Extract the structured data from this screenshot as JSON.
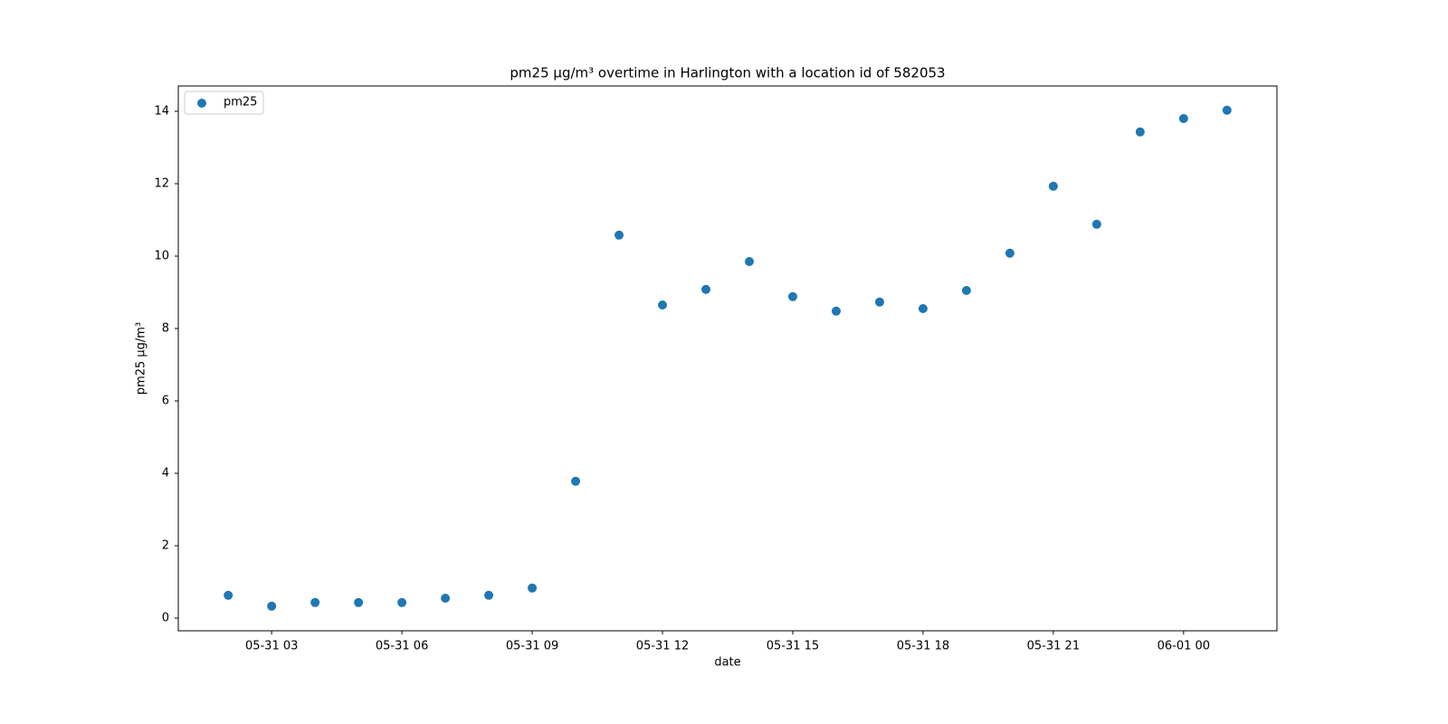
{
  "chart_data": {
    "type": "scatter",
    "title": "pm25 µg/m³ overtime in Harlington with a location id of 582053",
    "x_label": "date",
    "y_label": "pm25 µg/m³",
    "x": [
      "05-31 02",
      "05-31 03",
      "05-31 04",
      "05-31 05",
      "05-31 06",
      "05-31 07",
      "05-31 08",
      "05-31 09",
      "05-31 10",
      "05-31 11",
      "05-31 12",
      "05-31 13",
      "05-31 14",
      "05-31 15",
      "05-31 16",
      "05-31 17",
      "05-31 18",
      "05-31 19",
      "05-31 20",
      "05-31 21",
      "05-31 22",
      "05-31 23",
      "06-01 00",
      "06-01 01"
    ],
    "series": [
      {
        "name": "pm25",
        "color": "#1f77b4",
        "values": [
          0.63,
          0.33,
          0.43,
          0.43,
          0.43,
          0.55,
          0.63,
          0.83,
          3.78,
          10.58,
          8.65,
          9.08,
          9.85,
          8.88,
          8.48,
          8.73,
          8.55,
          9.05,
          10.08,
          11.93,
          10.88,
          13.43,
          13.8,
          14.03
        ]
      }
    ],
    "xlim": [
      "05-31 00:51",
      "06-01 02:09"
    ],
    "xticks": [
      "05-31 03",
      "05-31 06",
      "05-31 09",
      "05-31 12",
      "05-31 15",
      "05-31 18",
      "05-31 21",
      "06-01 00"
    ],
    "ylim": [
      -0.35,
      14.7
    ],
    "yticks": [
      0,
      2,
      4,
      6,
      8,
      10,
      12,
      14
    ],
    "grid": false,
    "legend": "upper left"
  }
}
